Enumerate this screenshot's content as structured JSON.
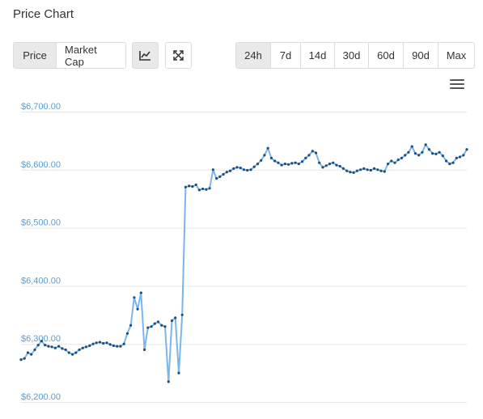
{
  "title": "Price Chart",
  "metric_buttons": [
    {
      "label": "Price",
      "active": true
    },
    {
      "label": "Market Cap",
      "active": false
    }
  ],
  "icons": {
    "line_chart": "line-chart-icon",
    "fullscreen": "fullscreen-icon",
    "menu": "hamburger-menu-icon"
  },
  "range_buttons": [
    {
      "label": "24h",
      "active": true
    },
    {
      "label": "7d",
      "active": false
    },
    {
      "label": "14d",
      "active": false
    },
    {
      "label": "30d",
      "active": false
    },
    {
      "label": "60d",
      "active": false
    },
    {
      "label": "90d",
      "active": false
    },
    {
      "label": "Max",
      "active": false
    }
  ],
  "colors": {
    "line": "#7cb5ec",
    "marker": "#1f4e79",
    "axis_label": "#5a9bd5",
    "grid": "#e6e6e6"
  },
  "chart_data": {
    "type": "line",
    "ylim": [
      6200,
      6700
    ],
    "y_ticks": [
      "$6,200.00",
      "$6,300.00",
      "$6,400.00",
      "$6,500.00",
      "$6,600.00",
      "$6,700.00"
    ],
    "y_tick_values": [
      6200,
      6300,
      6400,
      6500,
      6600,
      6700
    ],
    "grid": true,
    "series": [
      {
        "values": [
          6273,
          6275,
          6285,
          6282,
          6290,
          6298,
          6305,
          6298,
          6296,
          6295,
          6293,
          6296,
          6292,
          6290,
          6285,
          6282,
          6285,
          6290,
          6293,
          6295,
          6297,
          6300,
          6302,
          6303,
          6301,
          6302,
          6299,
          6297,
          6296,
          6296,
          6300,
          6318,
          6332,
          6380,
          6360,
          6388,
          6290,
          6328,
          6330,
          6335,
          6338,
          6332,
          6330,
          6235,
          6340,
          6345,
          6250,
          6350,
          6570,
          6572,
          6571,
          6574,
          6565,
          6567,
          6566,
          6568,
          6600,
          6585,
          6588,
          6592,
          6596,
          6598,
          6602,
          6604,
          6603,
          6600,
          6599,
          6600,
          6605,
          6610,
          6616,
          6625,
          6637,
          6620,
          6615,
          6612,
          6608,
          6610,
          6609,
          6611,
          6612,
          6610,
          6614,
          6620,
          6625,
          6632,
          6629,
          6612,
          6604,
          6607,
          6610,
          6612,
          6608,
          6606,
          6602,
          6598,
          6596,
          6595,
          6598,
          6600,
          6602,
          6600,
          6599,
          6602,
          6600,
          6598,
          6597,
          6610,
          6615,
          6612,
          6617,
          6620,
          6625,
          6630,
          6640,
          6628,
          6625,
          6630,
          6643,
          6635,
          6628,
          6627,
          6630,
          6624,
          6615,
          6610,
          6612,
          6620,
          6622,
          6625,
          6635
        ]
      }
    ]
  }
}
